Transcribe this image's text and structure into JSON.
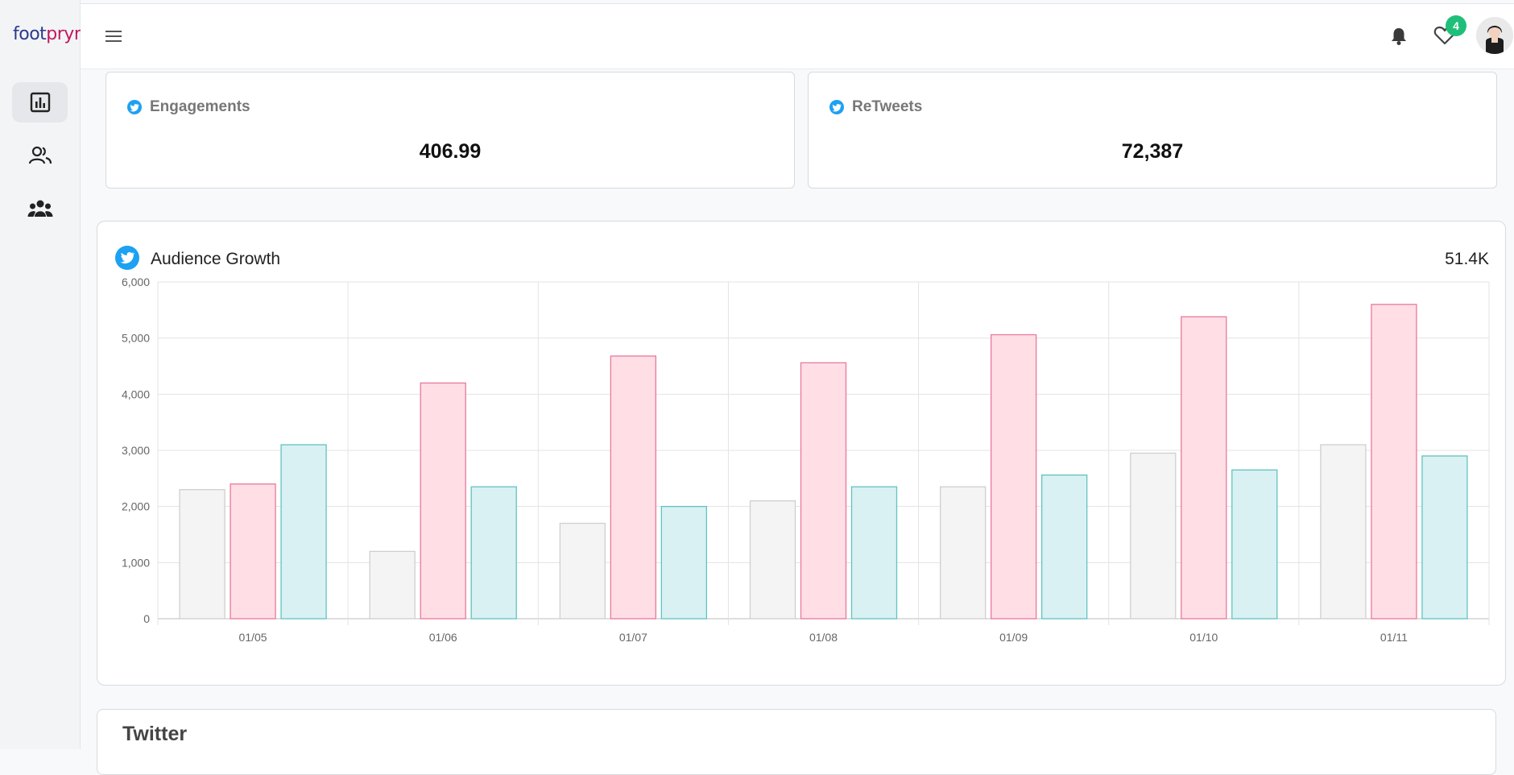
{
  "app": {
    "logo_part1": "foot",
    "logo_part2": "prynt"
  },
  "header": {
    "notification_count": "4"
  },
  "stats": [
    {
      "label": "Engagements",
      "value": "406.99"
    },
    {
      "label": "ReTweets",
      "value": "72,387"
    }
  ],
  "chart_card": {
    "title": "Audience Growth",
    "total": "51.4K"
  },
  "chart_data": {
    "type": "bar",
    "categories": [
      "01/05",
      "01/06",
      "01/07",
      "01/08",
      "01/09",
      "01/10",
      "01/11"
    ],
    "series": [
      {
        "values": [
          2300,
          1200,
          1700,
          2100,
          2350,
          2950,
          3100
        ]
      },
      {
        "values": [
          2400,
          4200,
          4680,
          4560,
          5060,
          5380,
          5600
        ]
      },
      {
        "values": [
          3100,
          2350,
          2000,
          2350,
          2560,
          2650,
          2900
        ]
      }
    ],
    "yticks": [
      "0",
      "1,000",
      "2,000",
      "3,000",
      "4,000",
      "5,000",
      "6,000"
    ],
    "ylim": [
      0,
      6000
    ],
    "grid": true,
    "colors": {
      "fill": [
        "#f4f4f4",
        "#ffdfe5",
        "#d9f1f2"
      ],
      "stroke": [
        "#cfcfcf",
        "#e8799a",
        "#62c2c2"
      ]
    }
  },
  "twitter_section": {
    "title": "Twitter"
  }
}
